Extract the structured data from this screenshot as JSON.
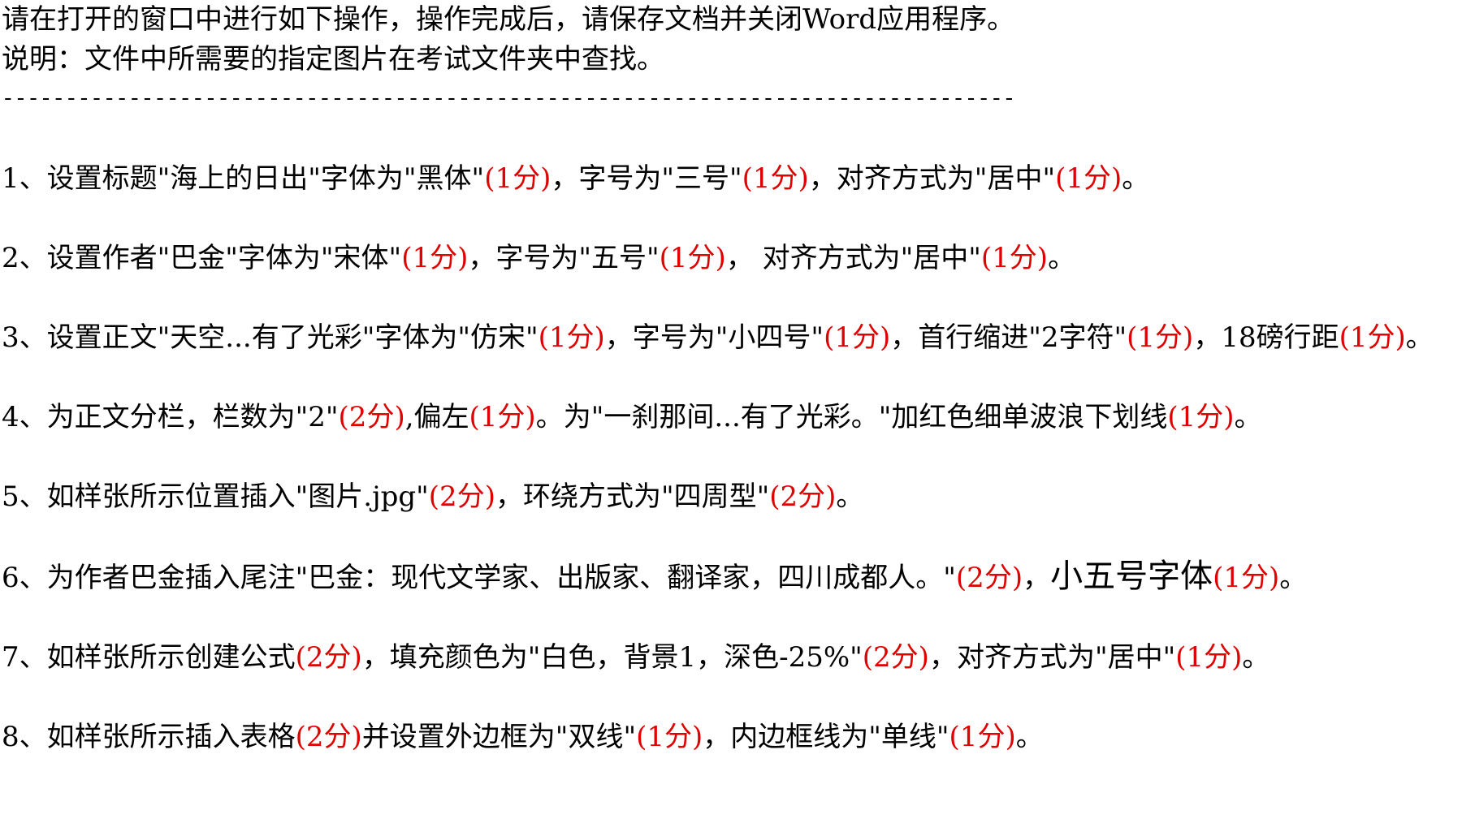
{
  "header": {
    "lines": [
      "请在打开的窗口中进行如下操作，操作完成后，请保存文档并关闭Word应用程序。",
      "说明：文件中所需要的指定图片在考试文件夹中查找。"
    ],
    "separator": "--------------------------------------------------------------------------------"
  },
  "items": [
    {
      "segments": [
        {
          "text": "1、设置标题\"海上的日出\"字体为\"黑体\""
        },
        {
          "text": "(1分)",
          "color": "#e00000"
        },
        {
          "text": "，字号为\"三号\""
        },
        {
          "text": "(1分)",
          "color": "#e00000"
        },
        {
          "text": "，对齐方式为\"居中\""
        },
        {
          "text": "(1分)",
          "color": "#e00000"
        },
        {
          "text": "。"
        }
      ]
    },
    {
      "segments": [
        {
          "text": "2、设置作者\"巴金\"字体为\"宋体\""
        },
        {
          "text": "(1分)",
          "color": "#e00000"
        },
        {
          "text": "，字号为\"五号\""
        },
        {
          "text": "(1分)",
          "color": "#e00000"
        },
        {
          "text": "， 对齐方式为\"居中\""
        },
        {
          "text": "(1分)",
          "color": "#e00000"
        },
        {
          "text": "。"
        }
      ]
    },
    {
      "segments": [
        {
          "text": "3、设置正文\"天空...有了光彩\"字体为\"仿宋\""
        },
        {
          "text": "(1分)",
          "color": "#e00000"
        },
        {
          "text": "，字号为\"小四号\""
        },
        {
          "text": "(1分)",
          "color": "#e00000"
        },
        {
          "text": "，首行缩进\"2字符\""
        },
        {
          "text": "(1分)",
          "color": "#e00000"
        },
        {
          "text": "，18磅行距"
        },
        {
          "text": "(1分)",
          "color": "#e00000"
        },
        {
          "text": "。"
        }
      ]
    },
    {
      "segments": [
        {
          "text": "4、为正文分栏，栏数为\"2\""
        },
        {
          "text": "(2分)",
          "color": "#e00000"
        },
        {
          "text": ",偏左"
        },
        {
          "text": "(1分)",
          "color": "#e00000"
        },
        {
          "text": "。为\"一刹那间...有了光彩。\"加红色细单波浪下划线"
        },
        {
          "text": "(1分)",
          "color": "#e00000"
        },
        {
          "text": "。"
        }
      ]
    },
    {
      "segments": [
        {
          "text": "5、如样张所示位置插入\"图片.jpg\""
        },
        {
          "text": "(2分)",
          "color": "#e00000"
        },
        {
          "text": "，环绕方式为\"四周型\""
        },
        {
          "text": "(2分)",
          "color": "#e00000"
        },
        {
          "text": "。"
        }
      ]
    },
    {
      "segments": [
        {
          "text": "6、为作者巴金插入尾注\"巴金：现代文学家、出版家、翻译家，四川成都人。\""
        },
        {
          "text": "(2分)",
          "color": "#e00000"
        },
        {
          "text": "，"
        },
        {
          "text": "小五号字体",
          "size": "large"
        },
        {
          "text": "(1分)",
          "color": "#e00000"
        },
        {
          "text": "。"
        }
      ]
    },
    {
      "segments": [
        {
          "text": "7、如样张所示创建公式"
        },
        {
          "text": "(2分)",
          "color": "#e00000"
        },
        {
          "text": "，填充颜色为\"白色，背景1，深色-25%\""
        },
        {
          "text": "(2分)",
          "color": "#e00000"
        },
        {
          "text": "，对齐方式为\"居中\""
        },
        {
          "text": "(1分)",
          "color": "#e00000"
        },
        {
          "text": "。"
        }
      ]
    },
    {
      "segments": [
        {
          "text": "8、如样张所示插入表格"
        },
        {
          "text": "(2分)",
          "color": "#e00000"
        },
        {
          "text": "并设置外边框为\"双线\""
        },
        {
          "text": "(1分)",
          "color": "#e00000"
        },
        {
          "text": "，内边框线为\"单线\""
        },
        {
          "text": "(1分)",
          "color": "#e00000"
        },
        {
          "text": "。"
        }
      ]
    }
  ]
}
